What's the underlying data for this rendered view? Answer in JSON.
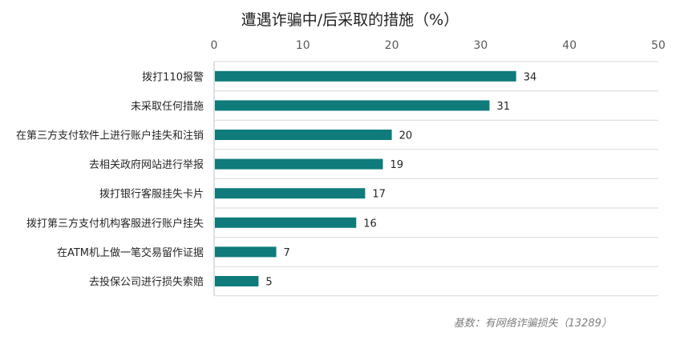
{
  "chart_data": {
    "type": "bar",
    "orientation": "horizontal",
    "title": "遭遇诈骗中/后采取的措施（%）",
    "categories": [
      "拨打110报警",
      "未采取任何措施",
      "在第三方支付软件上进行账户挂失和注销",
      "去相关政府网站进行举报",
      "拨打银行客服挂失卡片",
      "拨打第三方支付机构客服进行账户挂失",
      "在ATM机上做一笔交易留作证据",
      "去投保公司进行损失索赔"
    ],
    "values": [
      34,
      31,
      20,
      19,
      17,
      16,
      7,
      5
    ],
    "xlim": [
      0,
      50
    ],
    "xticks": [
      0,
      10,
      20,
      30,
      40,
      50
    ],
    "axis_position": "top",
    "grid": "horizontal separators",
    "bar_color": "#0f7b7b",
    "note": "基数：有网络诈骗损失（13289）"
  }
}
